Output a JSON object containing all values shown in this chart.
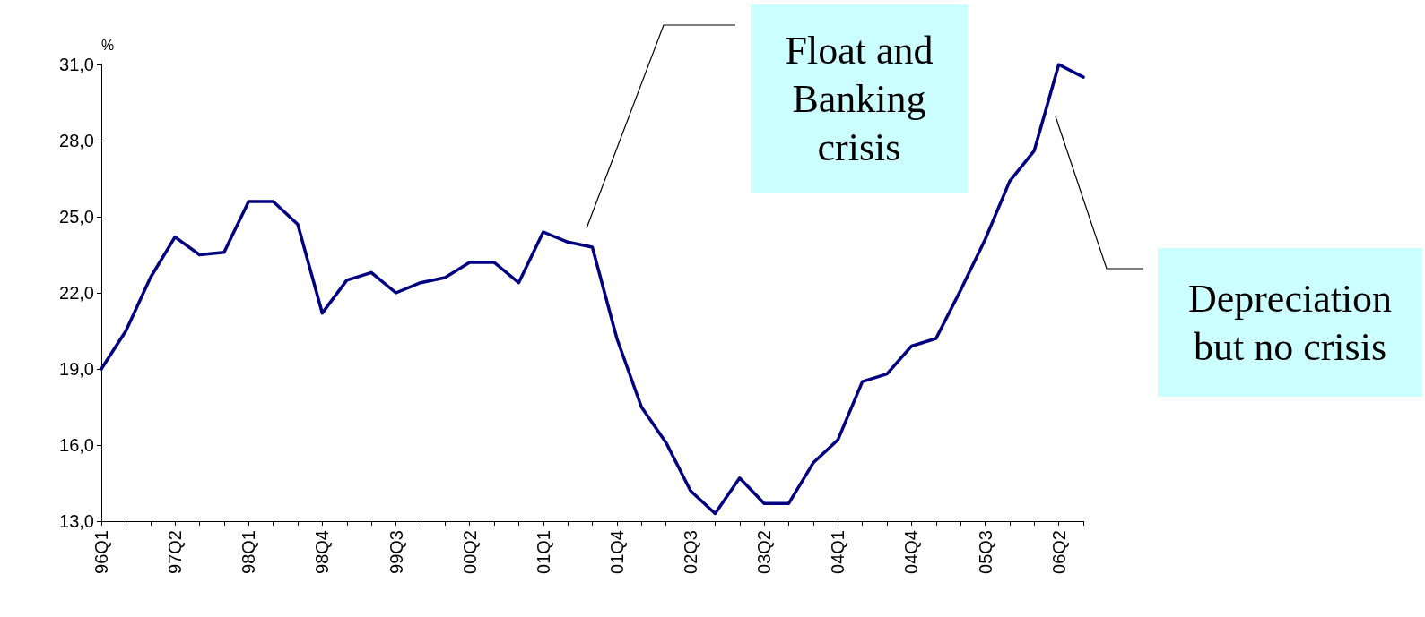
{
  "chart_data": {
    "type": "line",
    "ylabel": "%",
    "categories": [
      "96Q1",
      null,
      null,
      "97Q2",
      null,
      null,
      "98Q1",
      null,
      null,
      "98Q4",
      null,
      null,
      "99Q3",
      null,
      null,
      "00Q2",
      null,
      null,
      "01Q1",
      null,
      null,
      "01Q4",
      null,
      null,
      "02Q3",
      null,
      null,
      "03Q2",
      null,
      null,
      "04Q1",
      null,
      null,
      "04Q4",
      null,
      null,
      "05Q3",
      null,
      null,
      "06Q2",
      null
    ],
    "series": [
      {
        "color": "#000080",
        "values": [
          19.0,
          20.5,
          22.6,
          24.2,
          23.5,
          23.6,
          25.6,
          25.6,
          24.7,
          21.2,
          22.5,
          22.8,
          22.0,
          22.4,
          22.6,
          23.2,
          23.2,
          22.4,
          24.4,
          24.0,
          23.8,
          20.2,
          17.5,
          16.1,
          14.2,
          13.3,
          14.7,
          13.7,
          13.7,
          15.3,
          16.2,
          18.5,
          18.8,
          19.9,
          20.2,
          22.1,
          24.1,
          26.4,
          27.6,
          31.0,
          30.5
        ]
      }
    ],
    "ylim": [
      13,
      31
    ],
    "yticks": [
      {
        "value": 13,
        "label": "13,0"
      },
      {
        "value": 16,
        "label": "16,0"
      },
      {
        "value": 19,
        "label": "19,0"
      },
      {
        "value": 22,
        "label": "22,0"
      },
      {
        "value": 25,
        "label": "25,0"
      },
      {
        "value": 28,
        "label": "28,0"
      },
      {
        "value": 31,
        "label": "31,0"
      }
    ],
    "grid": false,
    "marker": "none",
    "line_style": "solid",
    "annotations": [
      "Float and\nBanking\ncrisis",
      "Depreciation\nbut no crisis"
    ]
  }
}
